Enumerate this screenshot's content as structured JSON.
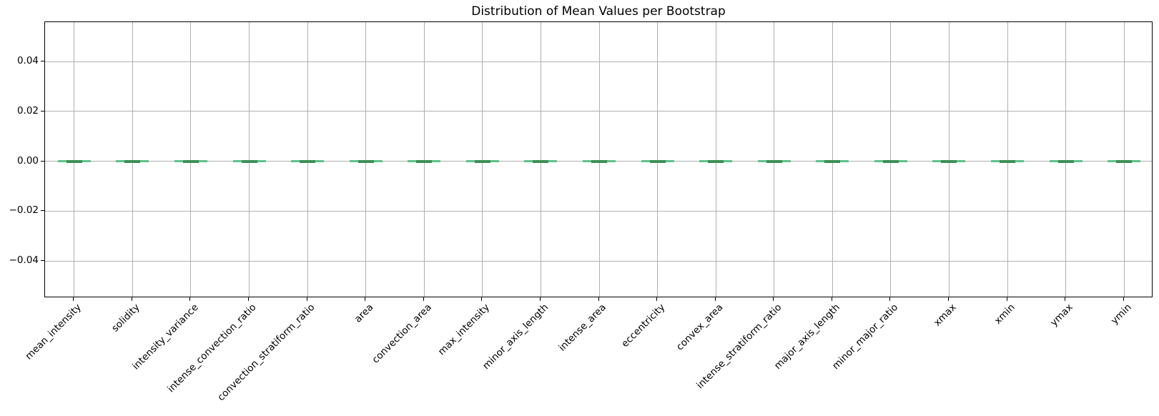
{
  "figure": {
    "background": "#ffffff"
  },
  "chart_data": {
    "type": "boxplot",
    "title": "Distribution of Mean Values per Bootstrap",
    "xlabel": "",
    "ylabel": "",
    "grid": true,
    "legend": null,
    "ylim": [
      -0.055,
      0.0557
    ],
    "yticks": [
      {
        "value": 0.04,
        "label": "0.04"
      },
      {
        "value": 0.02,
        "label": "0.02"
      },
      {
        "value": 0.0,
        "label": "0.00"
      },
      {
        "value": -0.02,
        "label": "−0.02"
      },
      {
        "value": -0.04,
        "label": "−0.04"
      }
    ],
    "categories": [
      "mean_intensity",
      "solidity",
      "intensity_variance",
      "intense_convection_ratio",
      "convection_stratiform_ratio",
      "area",
      "convection_area",
      "max_intensity",
      "minor_axis_length",
      "intense_area",
      "eccentricity",
      "convex_area",
      "intense_stratiform_ratio",
      "major_axis_length",
      "minor_major_ratio",
      "xmax",
      "xmin",
      "ymax",
      "ymin"
    ],
    "boxes": [
      {
        "label": "mean_intensity",
        "q1": 0.0,
        "median": 0.0,
        "q3": 0.0,
        "whisker_low": 0.0,
        "whisker_high": 0.0
      },
      {
        "label": "solidity",
        "q1": 0.0,
        "median": 0.0,
        "q3": 0.0,
        "whisker_low": 0.0,
        "whisker_high": 0.0
      },
      {
        "label": "intensity_variance",
        "q1": 0.0,
        "median": 0.0,
        "q3": 0.0,
        "whisker_low": 0.0,
        "whisker_high": 0.0
      },
      {
        "label": "intense_convection_ratio",
        "q1": 0.0,
        "median": 0.0,
        "q3": 0.0,
        "whisker_low": 0.0,
        "whisker_high": 0.0
      },
      {
        "label": "convection_stratiform_ratio",
        "q1": 0.0,
        "median": 0.0,
        "q3": 0.0,
        "whisker_low": 0.0,
        "whisker_high": 0.0
      },
      {
        "label": "area",
        "q1": 0.0,
        "median": 0.0,
        "q3": 0.0,
        "whisker_low": 0.0,
        "whisker_high": 0.0
      },
      {
        "label": "convection_area",
        "q1": 0.0,
        "median": 0.0,
        "q3": 0.0,
        "whisker_low": 0.0,
        "whisker_high": 0.0
      },
      {
        "label": "max_intensity",
        "q1": 0.0,
        "median": 0.0,
        "q3": 0.0,
        "whisker_low": 0.0,
        "whisker_high": 0.0
      },
      {
        "label": "minor_axis_length",
        "q1": 0.0,
        "median": 0.0,
        "q3": 0.0,
        "whisker_low": 0.0,
        "whisker_high": 0.0
      },
      {
        "label": "intense_area",
        "q1": 0.0,
        "median": 0.0,
        "q3": 0.0,
        "whisker_low": 0.0,
        "whisker_high": 0.0
      },
      {
        "label": "eccentricity",
        "q1": 0.0,
        "median": 0.0,
        "q3": 0.0,
        "whisker_low": 0.0,
        "whisker_high": 0.0
      },
      {
        "label": "convex_area",
        "q1": 0.0,
        "median": 0.0,
        "q3": 0.0,
        "whisker_low": 0.0,
        "whisker_high": 0.0
      },
      {
        "label": "intense_stratiform_ratio",
        "q1": 0.0,
        "median": 0.0,
        "q3": 0.0,
        "whisker_low": 0.0,
        "whisker_high": 0.0
      },
      {
        "label": "major_axis_length",
        "q1": 0.0,
        "median": 0.0,
        "q3": 0.0,
        "whisker_low": 0.0,
        "whisker_high": 0.0
      },
      {
        "label": "minor_major_ratio",
        "q1": 0.0,
        "median": 0.0,
        "q3": 0.0,
        "whisker_low": 0.0,
        "whisker_high": 0.0
      },
      {
        "label": "xmax",
        "q1": 0.0,
        "median": 0.0,
        "q3": 0.0,
        "whisker_low": 0.0,
        "whisker_high": 0.0
      },
      {
        "label": "xmin",
        "q1": 0.0,
        "median": 0.0,
        "q3": 0.0,
        "whisker_low": 0.0,
        "whisker_high": 0.0
      },
      {
        "label": "ymax",
        "q1": 0.0,
        "median": 0.0,
        "q3": 0.0,
        "whisker_low": 0.0,
        "whisker_high": 0.0
      },
      {
        "label": "ymin",
        "q1": 0.0,
        "median": 0.0,
        "q3": 0.0,
        "whisker_low": 0.0,
        "whisker_high": 0.0
      }
    ],
    "colors": {
      "whisker_line": "#5fc28a",
      "box_line": "#3b8f55",
      "grid": "#b0b0b0",
      "spine": "#000000",
      "title_text": "#000000",
      "tick_text": "#000000",
      "background": "#ffffff"
    }
  }
}
